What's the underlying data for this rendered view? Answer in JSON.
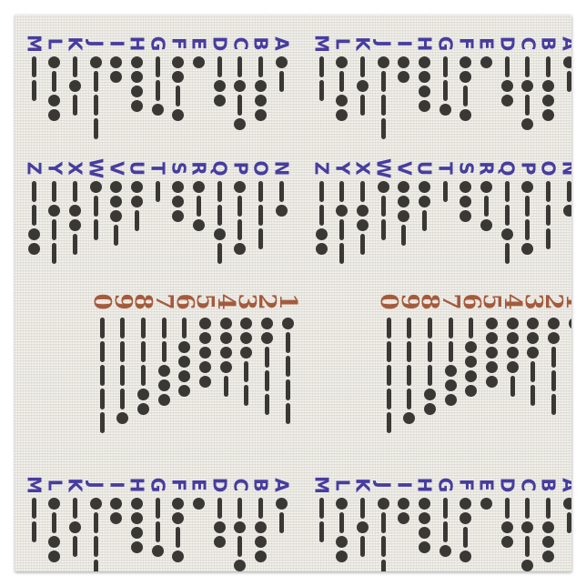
{
  "colors": {
    "page_background": "#FFFFFF",
    "fabric_background": "#ECEBE5",
    "letters": "#473CA0",
    "numbers": "#A55A3C",
    "morse_symbols": "#3A3835"
  },
  "morse_chart": {
    "symbol_legend": {
      "dot": ".",
      "dash": "-"
    },
    "rows": [
      {
        "name": "letters-a-m",
        "type": "letters",
        "items": [
          {
            "char": "M",
            "code": "--"
          },
          {
            "char": "L",
            "code": ".-.."
          },
          {
            "char": "K",
            "code": "-.-"
          },
          {
            "char": "J",
            "code": ".---"
          },
          {
            "char": "I",
            "code": ".."
          },
          {
            "char": "H",
            "code": "...."
          },
          {
            "char": "G",
            "code": "--."
          },
          {
            "char": "F",
            "code": "..-."
          },
          {
            "char": "E",
            "code": "."
          },
          {
            "char": "D",
            "code": "-.."
          },
          {
            "char": "C",
            "code": "-.-."
          },
          {
            "char": "B",
            "code": "-..."
          },
          {
            "char": "A",
            "code": ".-"
          }
        ]
      },
      {
        "name": "letters-n-z",
        "type": "letters",
        "items": [
          {
            "char": "Z",
            "code": "--.."
          },
          {
            "char": "Y",
            "code": "-.--"
          },
          {
            "char": "X",
            "code": "-..-"
          },
          {
            "char": "W",
            "code": ".--"
          },
          {
            "char": "V",
            "code": "...-"
          },
          {
            "char": "U",
            "code": "..-"
          },
          {
            "char": "T",
            "code": "-"
          },
          {
            "char": "S",
            "code": "..."
          },
          {
            "char": "R",
            "code": ".-."
          },
          {
            "char": "Q",
            "code": "--.-"
          },
          {
            "char": "P",
            "code": ".--."
          },
          {
            "char": "O",
            "code": "---"
          },
          {
            "char": "N",
            "code": "-."
          }
        ]
      },
      {
        "name": "numbers-0-to-1",
        "type": "numbers",
        "items": [
          {
            "char": "0",
            "code": "-----"
          },
          {
            "char": "9",
            "code": "----."
          },
          {
            "char": "8",
            "code": "---.."
          },
          {
            "char": "7",
            "code": "--..."
          },
          {
            "char": "6",
            "code": "-...."
          },
          {
            "char": "5",
            "code": "....."
          },
          {
            "char": "4",
            "code": "....-"
          },
          {
            "char": "3",
            "code": "...--"
          },
          {
            "char": "2",
            "code": "..---"
          },
          {
            "char": "1",
            "code": ".----"
          }
        ]
      }
    ]
  }
}
